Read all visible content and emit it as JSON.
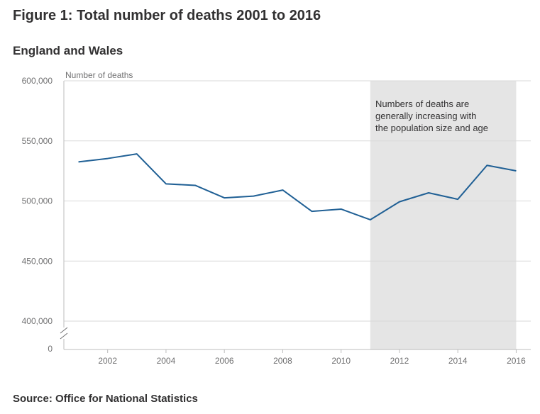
{
  "title": "Figure 1: Total number of deaths 2001 to 2016",
  "subtitle": "England and Wales",
  "source": "Source: Office for National Statistics",
  "colors": {
    "line": "#206095",
    "shade": "#e5e5e5",
    "grid": "#d9d9d9",
    "axis": "#bcbcbc"
  },
  "chart_data": {
    "type": "line",
    "ylabel": "Number of deaths",
    "xlabel": "",
    "x": [
      2001,
      2002,
      2003,
      2004,
      2005,
      2006,
      2007,
      2008,
      2009,
      2010,
      2011,
      2012,
      2013,
      2014,
      2015,
      2016
    ],
    "series": [
      {
        "values": [
          532498,
          535356,
          539151,
          514250,
          512993,
          502599,
          504052,
          509090,
          491348,
          493242,
          484367,
          499331,
          506790,
          501424,
          529655,
          525048
        ]
      }
    ],
    "ylim": [
      400000,
      600000
    ],
    "broken_axis_zero": true,
    "yticks": [
      {
        "value": 600000,
        "label": "600,000"
      },
      {
        "value": 550000,
        "label": "550,000"
      },
      {
        "value": 500000,
        "label": "500,000"
      },
      {
        "value": 450000,
        "label": "450,000"
      },
      {
        "value": 400000,
        "label": "400,000"
      }
    ],
    "zero_label": "0",
    "xticks": [
      2002,
      2004,
      2006,
      2008,
      2010,
      2012,
      2014,
      2016
    ],
    "grid": true,
    "shaded_region": {
      "x_start": 2011,
      "x_end": 2016
    },
    "annotation": {
      "lines": [
        "Numbers of deaths are",
        "generally increasing with",
        "the population size and age"
      ]
    }
  }
}
